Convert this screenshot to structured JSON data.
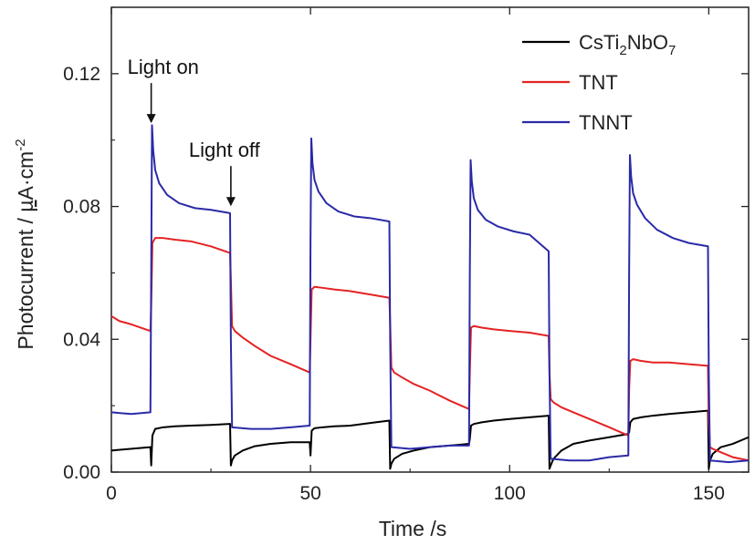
{
  "chart_data": {
    "type": "line",
    "xlabel": "Time /s",
    "ylabel_parts": [
      "Photocurrent / ",
      "µ",
      "A·cm",
      "-2"
    ],
    "xlim": [
      0,
      160
    ],
    "ylim": [
      0,
      0.14
    ],
    "x_ticks": [
      0,
      50,
      100,
      150
    ],
    "y_ticks": [
      0.0,
      0.04,
      0.08,
      0.12
    ],
    "x_tick_labels": [
      "0",
      "50",
      "100",
      "150"
    ],
    "y_tick_labels": [
      "0.00",
      "0.04",
      "0.08",
      "0.12"
    ],
    "grid": false,
    "legend_position": "top-right",
    "legend": [
      {
        "parts": [
          "CsTi",
          "2",
          "NbO",
          "7"
        ],
        "color": "#000000"
      },
      {
        "parts": [
          "TNT"
        ],
        "color": "#e52222"
      },
      {
        "parts": [
          "TNNT"
        ],
        "color": "#2a2aa8"
      }
    ],
    "annotations": [
      {
        "text": "Light on",
        "x": 10,
        "y": 0.104
      },
      {
        "text": "Light off",
        "x": 30,
        "y": 0.079
      }
    ],
    "series": [
      {
        "name": "CsTi2NbO7",
        "color": "#000000",
        "x": [
          0,
          9.8,
          10,
          10.3,
          11,
          13,
          16,
          20,
          25,
          29.8,
          30,
          30.3,
          31,
          33,
          36,
          40,
          45,
          49.8,
          50,
          50.3,
          51,
          53,
          56,
          60,
          65,
          69.8,
          70,
          70.3,
          71,
          73,
          76,
          80,
          85,
          89.8,
          90,
          90.3,
          91,
          93,
          96,
          100,
          105,
          109.8,
          110,
          110.3,
          111,
          113,
          116,
          120,
          125,
          129.8,
          130,
          130.3,
          131,
          133,
          136,
          140,
          145,
          149.8,
          150,
          150.3,
          151,
          153,
          156,
          160
        ],
        "y": [
          0.0065,
          0.0075,
          0.002,
          0.011,
          0.013,
          0.0135,
          0.0138,
          0.014,
          0.0142,
          0.0145,
          0.002,
          0.0035,
          0.005,
          0.0065,
          0.0078,
          0.0085,
          0.009,
          0.009,
          0.005,
          0.0125,
          0.0132,
          0.0135,
          0.0138,
          0.014,
          0.0148,
          0.0155,
          0.001,
          0.0025,
          0.004,
          0.0055,
          0.0065,
          0.0075,
          0.008,
          0.0085,
          0.01,
          0.014,
          0.0145,
          0.015,
          0.0155,
          0.016,
          0.0165,
          0.017,
          0.001,
          0.002,
          0.004,
          0.0065,
          0.0085,
          0.0095,
          0.0105,
          0.0115,
          0.012,
          0.015,
          0.016,
          0.0165,
          0.017,
          0.0175,
          0.018,
          0.0185,
          0.001,
          0.0035,
          0.0055,
          0.0075,
          0.0085,
          0.0105
        ]
      },
      {
        "name": "TNT",
        "color": "#e52222",
        "x": [
          0,
          2,
          5,
          9.8,
          10,
          10.3,
          11,
          13,
          16,
          20,
          25,
          29.8,
          30,
          30.3,
          31,
          33,
          36,
          40,
          45,
          49.8,
          50,
          50.3,
          51,
          53,
          56,
          60,
          65,
          69.8,
          70,
          70.3,
          71,
          73,
          76,
          80,
          85,
          89.8,
          90,
          90.3,
          91,
          93,
          96,
          100,
          105,
          109.8,
          110,
          110.3,
          111,
          113,
          116,
          120,
          125,
          129.8,
          130,
          130.3,
          131,
          133,
          136,
          140,
          145,
          149.8,
          150,
          150.3,
          151,
          153,
          156,
          160
        ],
        "y": [
          0.047,
          0.0455,
          0.0445,
          0.0425,
          0.05,
          0.069,
          0.0705,
          0.0705,
          0.07,
          0.0695,
          0.068,
          0.066,
          0.058,
          0.044,
          0.0425,
          0.0405,
          0.038,
          0.035,
          0.0325,
          0.03,
          0.04,
          0.055,
          0.0558,
          0.0555,
          0.055,
          0.0545,
          0.0535,
          0.0525,
          0.045,
          0.0315,
          0.03,
          0.0285,
          0.0265,
          0.0245,
          0.0215,
          0.019,
          0.03,
          0.0435,
          0.044,
          0.0435,
          0.043,
          0.0425,
          0.042,
          0.041,
          0.03,
          0.022,
          0.021,
          0.0195,
          0.018,
          0.016,
          0.0135,
          0.011,
          0.025,
          0.0335,
          0.034,
          0.0335,
          0.033,
          0.033,
          0.0325,
          0.032,
          0.015,
          0.0075,
          0.007,
          0.006,
          0.0045,
          0.0035
        ]
      },
      {
        "name": "TNNT",
        "color": "#2a2aa8",
        "x": [
          0,
          5,
          9.8,
          10,
          10.2,
          10.5,
          11,
          12,
          14,
          17,
          21,
          25,
          29.8,
          30,
          30.3,
          35,
          40,
          45,
          49.8,
          50,
          50.2,
          50.5,
          51,
          52,
          54,
          57,
          61,
          65,
          69.8,
          70,
          70.3,
          75,
          80,
          85,
          89.8,
          90,
          90.2,
          90.5,
          91,
          92,
          94,
          97,
          101,
          105,
          109.8,
          110,
          110.3,
          115,
          120,
          125,
          129.8,
          130,
          130.2,
          130.5,
          131,
          132,
          134,
          137,
          141,
          145,
          149.8,
          150,
          150.3,
          155,
          160
        ],
        "y": [
          0.018,
          0.0175,
          0.018,
          0.06,
          0.1045,
          0.097,
          0.091,
          0.087,
          0.0835,
          0.081,
          0.0795,
          0.079,
          0.078,
          0.04,
          0.0135,
          0.013,
          0.013,
          0.0135,
          0.014,
          0.07,
          0.1005,
          0.093,
          0.088,
          0.0845,
          0.081,
          0.0785,
          0.077,
          0.0765,
          0.0755,
          0.04,
          0.0075,
          0.007,
          0.0075,
          0.008,
          0.008,
          0.06,
          0.094,
          0.0875,
          0.0825,
          0.079,
          0.076,
          0.074,
          0.0725,
          0.0715,
          0.0665,
          0.03,
          0.004,
          0.0035,
          0.0035,
          0.0045,
          0.005,
          0.06,
          0.0955,
          0.089,
          0.084,
          0.0805,
          0.0765,
          0.073,
          0.0705,
          0.069,
          0.068,
          0.03,
          0.0035,
          0.003,
          0.0035
        ]
      }
    ]
  }
}
